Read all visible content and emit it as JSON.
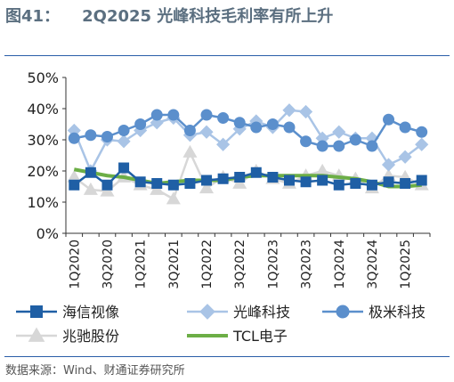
{
  "header": {
    "title": "图41：    2Q2025 光峰科技毛利率有所上升"
  },
  "footer": {
    "source": "数据来源：Wind、财通证券研究所"
  },
  "colors": {
    "海信视像": "#1f5fa5",
    "光峰科技": "#a9c4e6",
    "极米科技": "#5b8fcc",
    "兆驰股份": "#d7d7d7",
    "TCL电子": "#6cae46"
  },
  "chart_data": {
    "type": "line",
    "title": "2Q2025 光峰科技毛利率有所上升",
    "xlabel": "",
    "ylabel": "",
    "ylim": [
      0,
      50
    ],
    "ytick_step": 10,
    "unit": "%",
    "grid": false,
    "legend_position": "bottom",
    "categories": [
      "1Q2020",
      "2Q2020",
      "3Q2020",
      "4Q2020",
      "1Q2021",
      "2Q2021",
      "3Q2021",
      "4Q2021",
      "1Q2022",
      "2Q2022",
      "3Q2022",
      "4Q2022",
      "1Q2023",
      "2Q2023",
      "3Q2023",
      "4Q2023",
      "1Q2024",
      "2Q2024",
      "3Q2024",
      "4Q2024",
      "1Q2025",
      "2Q2025"
    ],
    "xtick_labels": [
      "1Q2020",
      "3Q2020",
      "1Q2021",
      "3Q2021",
      "1Q2022",
      "3Q2022",
      "1Q2023",
      "3Q2023",
      "1Q2024",
      "3Q2024",
      "1Q2025"
    ],
    "series": [
      {
        "name": "海信视像",
        "marker": "square",
        "values": [
          15.5,
          19.5,
          15.5,
          21,
          16.5,
          16,
          15.5,
          16,
          17,
          17.5,
          18,
          19.5,
          18,
          17,
          16.5,
          17,
          15.5,
          16,
          15.5,
          16.5,
          16,
          17
        ]
      },
      {
        "name": "光峰科技",
        "marker": "diamond",
        "values": [
          33,
          20,
          30,
          29.5,
          33,
          35.5,
          37,
          31.5,
          32.5,
          28.5,
          33.5,
          36,
          34,
          39.5,
          39,
          30.5,
          32.5,
          30.5,
          30.5,
          22,
          24.5,
          28.5
        ]
      },
      {
        "name": "极米科技",
        "marker": "circle",
        "values": [
          30.5,
          31.5,
          31,
          33,
          35,
          38,
          38,
          33,
          38,
          37,
          35.5,
          34,
          35,
          34,
          29.5,
          28,
          28,
          30,
          28,
          36.5,
          34,
          32.5
        ]
      },
      {
        "name": "兆驰股份",
        "marker": "triangle",
        "values": [
          18,
          14,
          13.5,
          18,
          15.5,
          14,
          11,
          26,
          14.5,
          18,
          16,
          20,
          17.5,
          16,
          18.5,
          20,
          18.5,
          17.5,
          14.5,
          18.5,
          18,
          15.5
        ]
      },
      {
        "name": "TCL电子",
        "marker": "none",
        "values": [
          20.5,
          19.5,
          18.5,
          18,
          17,
          16,
          16.5,
          17,
          17,
          17,
          18,
          18.5,
          18.5,
          18.5,
          18.5,
          18.5,
          18,
          17.5,
          16.5,
          15,
          15,
          15.5
        ]
      }
    ]
  }
}
